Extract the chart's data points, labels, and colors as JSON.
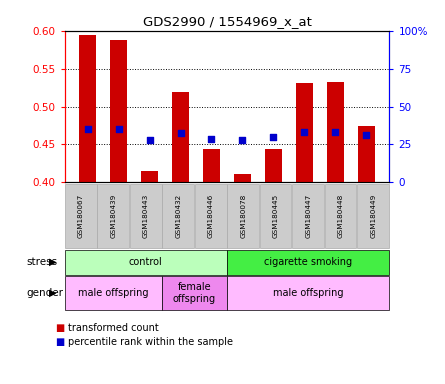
{
  "title": "GDS2990 / 1554969_x_at",
  "samples": [
    "GSM180067",
    "GSM180439",
    "GSM180443",
    "GSM180432",
    "GSM180446",
    "GSM180078",
    "GSM180445",
    "GSM180447",
    "GSM180448",
    "GSM180449"
  ],
  "bar_values": [
    0.595,
    0.588,
    0.415,
    0.519,
    0.444,
    0.411,
    0.444,
    0.531,
    0.533,
    0.474
  ],
  "percentile_values": [
    0.47,
    0.47,
    0.456,
    0.465,
    0.457,
    0.456,
    0.46,
    0.466,
    0.466,
    0.462
  ],
  "ylim": [
    0.4,
    0.6
  ],
  "yticks": [
    0.4,
    0.45,
    0.5,
    0.55,
    0.6
  ],
  "right_yticks_vals": [
    0,
    25,
    50,
    75,
    100
  ],
  "right_yticks_labels": [
    "0",
    "25",
    "50",
    "75",
    "100%"
  ],
  "bar_color": "#cc0000",
  "dot_color": "#0000cc",
  "stress_groups": [
    {
      "label": "control",
      "start": 0,
      "end": 4
    },
    {
      "label": "cigarette smoking",
      "start": 5,
      "end": 9
    }
  ],
  "stress_colors": [
    "#bbffbb",
    "#44ee44"
  ],
  "gender_groups": [
    {
      "label": "male offspring",
      "start": 0,
      "end": 2
    },
    {
      "label": "female\noffspring",
      "start": 3,
      "end": 4
    },
    {
      "label": "male offspring",
      "start": 5,
      "end": 9
    }
  ],
  "gender_colors": [
    "#ffbbff",
    "#ee88ee",
    "#ffbbff"
  ],
  "stress_label": "stress",
  "gender_label": "gender",
  "legend_red": "transformed count",
  "legend_blue": "percentile rank within the sample",
  "tick_bg_color": "#cccccc"
}
